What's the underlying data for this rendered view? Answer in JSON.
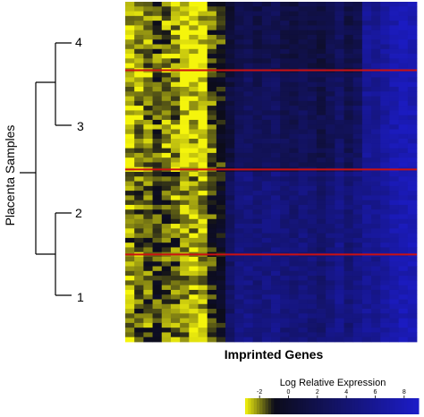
{
  "chart_data": {
    "type": "heatmap",
    "title": "",
    "xlabel": "Imprinted Genes",
    "ylabel": "Placenta Samples",
    "n_rows": 72,
    "n_cols": 32,
    "cluster_labels": [
      "4",
      "3",
      "2",
      "1"
    ],
    "cluster_separators_after_row": [
      14,
      35,
      53
    ],
    "separator_color": "#cc1111",
    "column_profile": [
      -2.5,
      -2.2,
      -2.0,
      -1.6,
      -2.0,
      -2.2,
      -2.8,
      -2.8,
      -2.9,
      -1.6,
      -1.0,
      2.0,
      3.5,
      3.8,
      3.2,
      3.6,
      3.9,
      3.2,
      3.0,
      3.5,
      3.2,
      2.6,
      3.4,
      4.2,
      3.1,
      3.9,
      6.0,
      5.8,
      6.6,
      7.4,
      7.8,
      7.8
    ],
    "cluster_offsets": [
      -1.6,
      -0.9,
      1.1,
      1.3
    ],
    "legend": {
      "title": "Log Relative Expression",
      "ticks": [
        "-2",
        "0",
        "2",
        "4",
        "6",
        "8"
      ],
      "range": [
        -3,
        9
      ],
      "colors": [
        "#f5f50c",
        "#0c0c1a",
        "#1c1cc8"
      ]
    }
  }
}
